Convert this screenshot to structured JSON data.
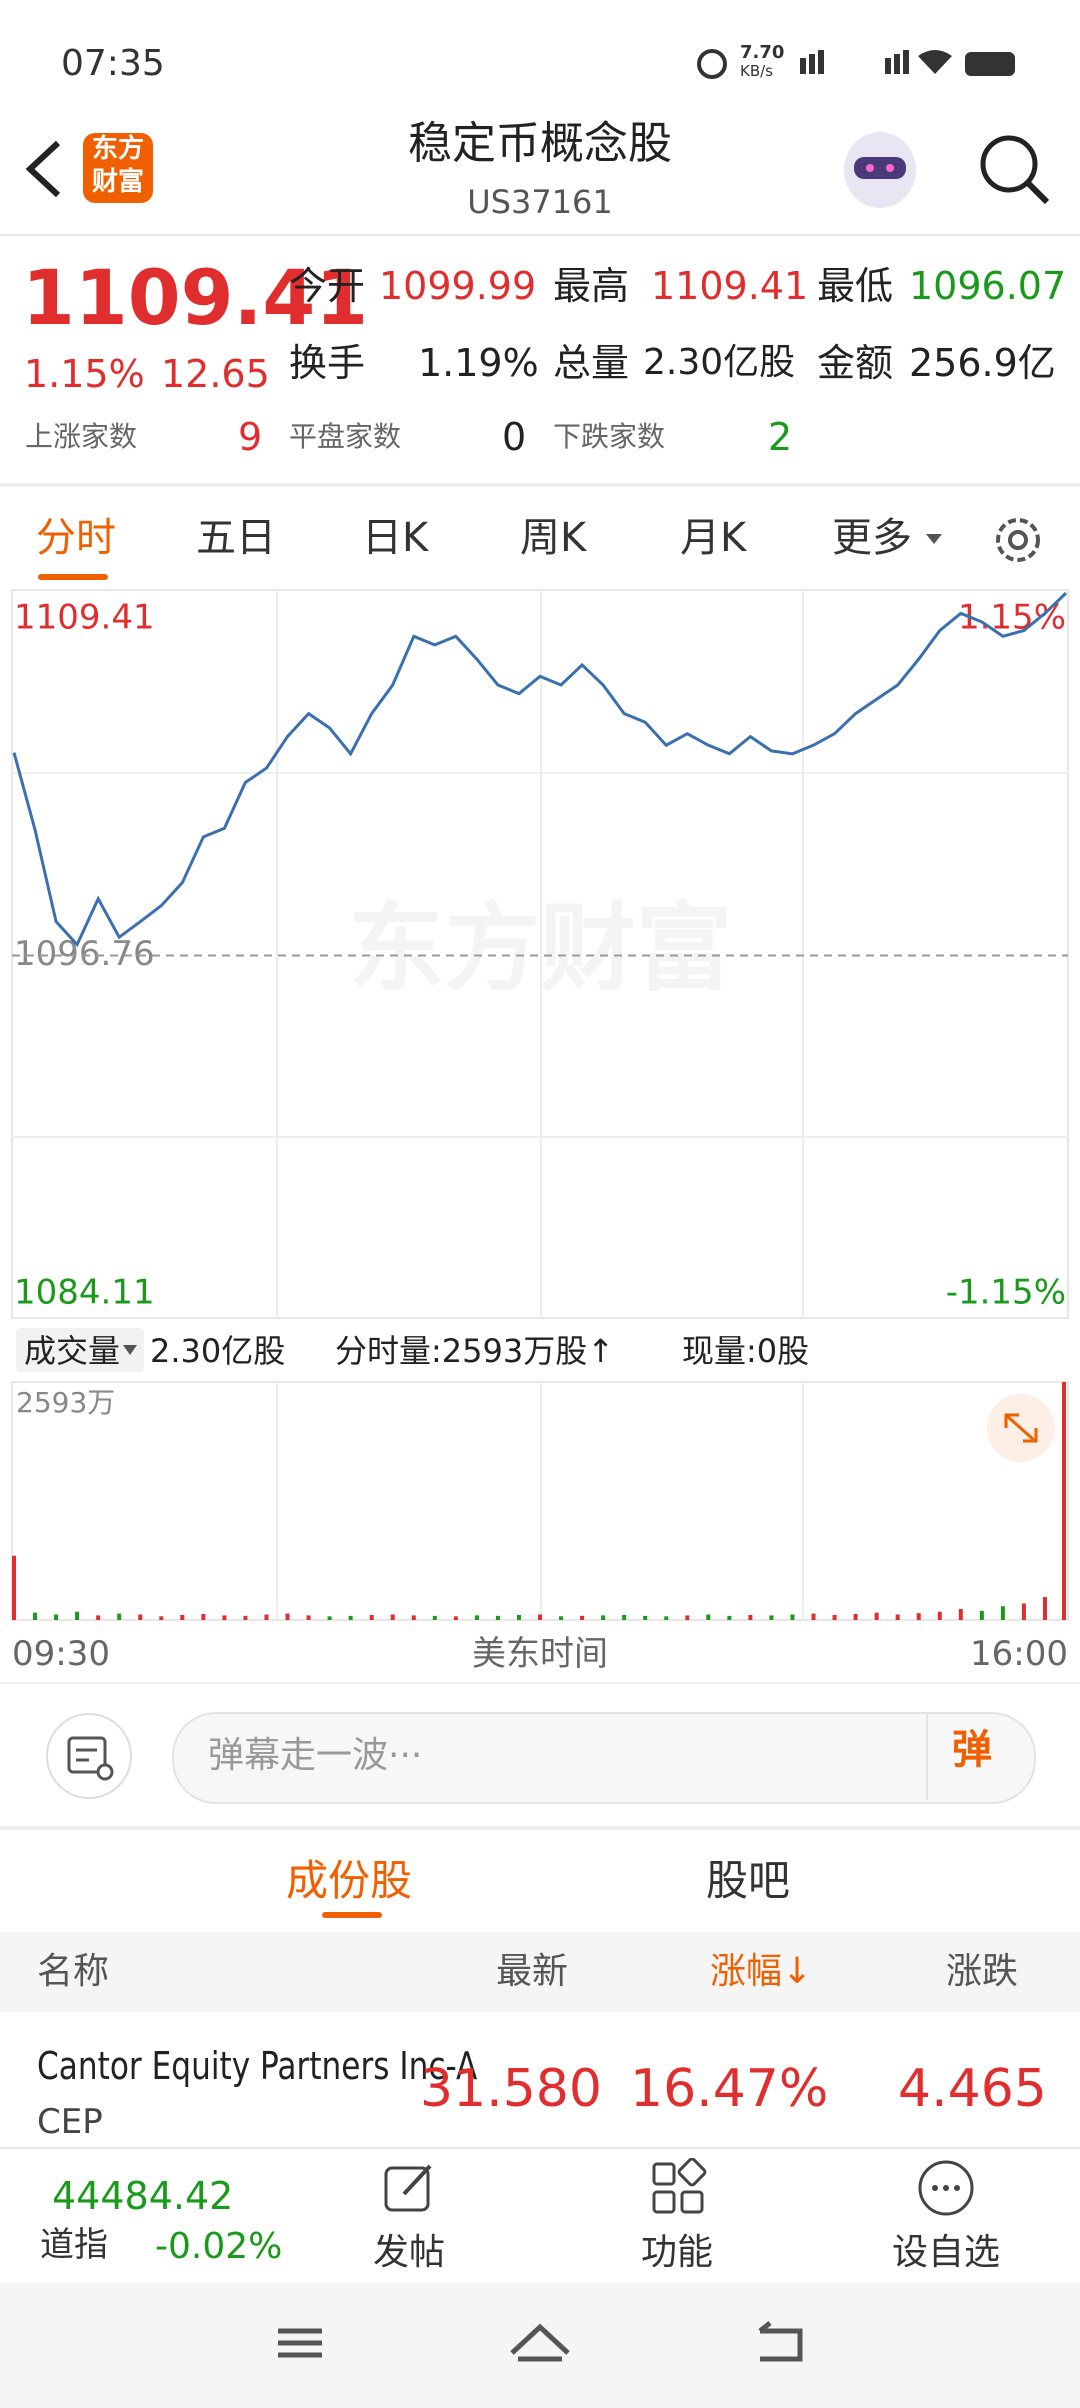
{
  "status_bar": {
    "time": "07:35",
    "speed": "7.70",
    "speed_unit": "KB/s"
  },
  "header": {
    "logo": "东方财富",
    "title": "稳定币概念股",
    "code": "US37161"
  },
  "quote": {
    "price": "1109.41",
    "change_pct": "1.15%",
    "change": "12.65",
    "open_label": "今开",
    "open": "1099.99",
    "high_label": "最高",
    "high": "1109.41",
    "low_label": "最低",
    "low": "1096.07",
    "turnover_label": "换手",
    "turnover": "1.19%",
    "volume_label": "总量",
    "volume": "2.30亿股",
    "amount_label": "金额",
    "amount": "256.9亿",
    "up_label": "上涨家数",
    "up": "9",
    "flat_label": "平盘家数",
    "flat": "0",
    "down_label": "下跌家数",
    "down": "2"
  },
  "tabs": [
    "分时",
    "五日",
    "日K",
    "周K",
    "月K",
    "更多"
  ],
  "chart": {
    "type": "line",
    "color": "#3a6fb0",
    "values": [
      1103.84,
      1101.15,
      1097.94,
      1097.14,
      1098.74,
      1097.4,
      1097.94,
      1098.5,
      1099.3,
      1100.9,
      1101.2,
      1102.8,
      1103.3,
      1104.4,
      1105.2,
      1104.7,
      1103.8,
      1105.2,
      1106.2,
      1107.9,
      1107.6,
      1107.9,
      1107.1,
      1106.2,
      1105.9,
      1106.5,
      1106.2,
      1106.9,
      1106.2,
      1105.2,
      1104.9,
      1104.1,
      1104.5,
      1104.1,
      1103.8,
      1104.4,
      1103.9,
      1103.8,
      1104.1,
      1104.5,
      1105.2,
      1105.7,
      1106.2,
      1107.1,
      1108.1,
      1108.7,
      1108.4,
      1107.9,
      1108.1,
      1108.7,
      1109.41
    ],
    "ylim": [
      1084.11,
      1109.41
    ],
    "yticks": [
      1084.11,
      1096.76,
      1109.41
    ],
    "y2lim": [
      -1.15,
      1.15
    ],
    "y2ticks": [
      {
        "value": -1.15,
        "label": "-1.15%"
      },
      {
        "value": 1.15,
        "label": "1.15%"
      }
    ],
    "xticks": [
      "09:30",
      "16:00"
    ],
    "xlabel": "美东时间",
    "watermark": "东方财富"
  },
  "volume": {
    "selector": "成交量",
    "total": "2.30亿股",
    "minute_volume": "分时量:2593万股↑",
    "current": "现量:0股",
    "type": "bar",
    "values": [
      700,
      80,
      60,
      90,
      50,
      70,
      60,
      40,
      55,
      65,
      50,
      45,
      60,
      70,
      50,
      40,
      45,
      55,
      60,
      50,
      45,
      40,
      50,
      45,
      55,
      60,
      40,
      45,
      50,
      55,
      45,
      40,
      50,
      60,
      45,
      55,
      50,
      60,
      70,
      55,
      65,
      80,
      60,
      75,
      90,
      120,
      100,
      150,
      180,
      250,
      2593
    ],
    "ylim": [
      0,
      2593
    ],
    "yticks": [
      {
        "value": 2593,
        "label": "2593万"
      }
    ],
    "up_color": "#e02d2d",
    "down_color": "#1a9a1a"
  },
  "danmu": {
    "placeholder": "弹幕走一波···",
    "button": "弹"
  },
  "sub_tabs": [
    "成份股",
    "股吧"
  ],
  "table": {
    "headers": [
      "名称",
      "最新",
      "涨幅↓",
      "涨跌"
    ],
    "rows": [
      [
        "Cantor Equity Partners Inc-A",
        "CEP",
        "31.580",
        "16.47%",
        "4.465"
      ]
    ]
  },
  "bottom_nav": {
    "index_value": "44484.42",
    "index_name": "道指",
    "index_change": "-0.02%",
    "items": [
      "发帖",
      "功能",
      "设自选"
    ]
  }
}
